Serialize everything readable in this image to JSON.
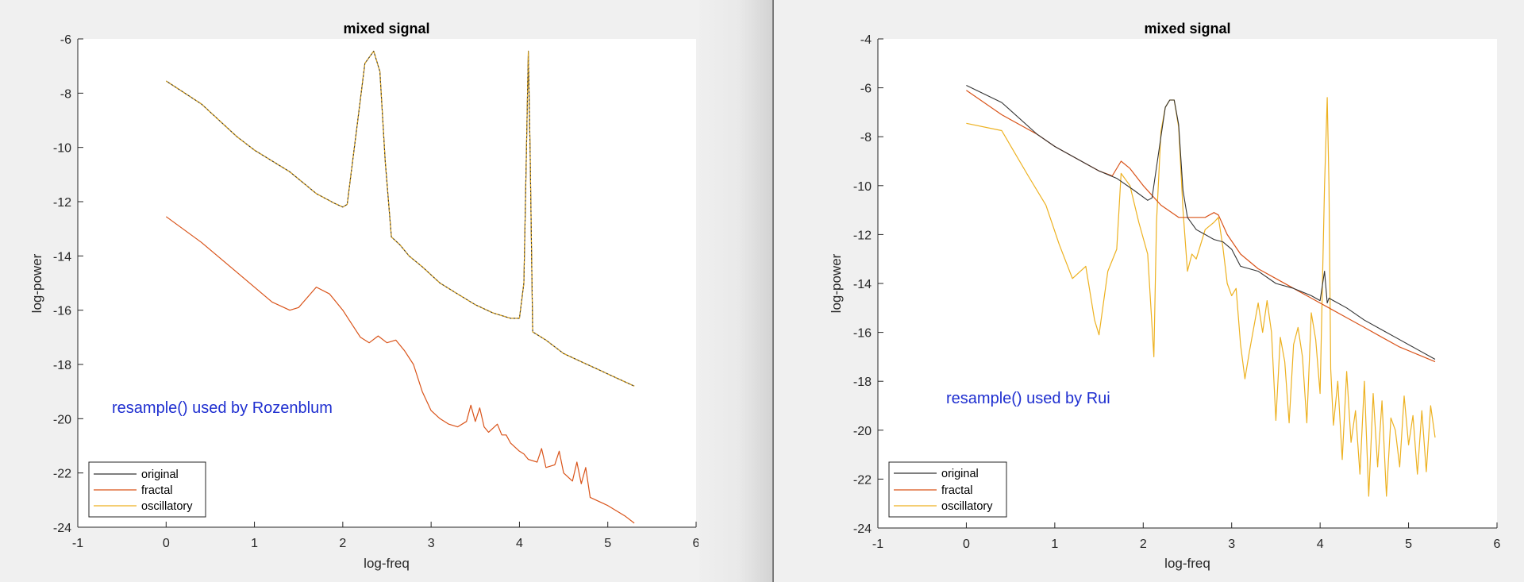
{
  "figure": {
    "background": "#f0f0f0",
    "colors": {
      "original": "#333333",
      "fractal": "#d95319",
      "oscillatory": "#edb120",
      "annotation": "#1f2fd0"
    }
  },
  "chart_data": [
    {
      "type": "line",
      "title": "mixed signal",
      "xlabel": "log-freq",
      "ylabel": "log-power",
      "xlim": [
        -1,
        6
      ],
      "ylim": [
        -24,
        -6
      ],
      "xticks": [
        "-1",
        "0",
        "1",
        "2",
        "3",
        "4",
        "5",
        "6"
      ],
      "yticks": [
        "-6",
        "-8",
        "-10",
        "-12",
        "-14",
        "-16",
        "-18",
        "-20",
        "-22",
        "-24"
      ],
      "grid": false,
      "legend": {
        "position": "southwest",
        "entries": [
          "original",
          "fractal",
          "oscillatory"
        ]
      },
      "annotation": {
        "text": "resample() used by Rozenblum",
        "x": -0.6,
        "y": -19.6
      },
      "series": [
        {
          "name": "original",
          "color": "#333333",
          "x": [
            0,
            0.4,
            0.8,
            1.0,
            1.4,
            1.7,
            1.9,
            2.0,
            2.05,
            2.15,
            2.25,
            2.35,
            2.42,
            2.48,
            2.55,
            2.65,
            2.75,
            2.9,
            3.1,
            3.3,
            3.5,
            3.7,
            3.9,
            4.0,
            4.05,
            4.08,
            4.1,
            4.12,
            4.15,
            4.3,
            4.5,
            4.7,
            4.9,
            5.1,
            5.3
          ],
          "y": [
            -7.55,
            -8.4,
            -9.6,
            -10.1,
            -10.9,
            -11.7,
            -12.05,
            -12.2,
            -12.1,
            -9.5,
            -6.9,
            -6.45,
            -7.2,
            -10.5,
            -13.3,
            -13.6,
            -14.0,
            -14.4,
            -15.0,
            -15.4,
            -15.8,
            -16.1,
            -16.3,
            -16.3,
            -15.0,
            -10.0,
            -6.45,
            -10.0,
            -16.8,
            -17.1,
            -17.6,
            -17.9,
            -18.2,
            -18.5,
            -18.8
          ]
        },
        {
          "name": "fractal",
          "color": "#d95319",
          "x": [
            0,
            0.4,
            0.8,
            1.2,
            1.4,
            1.5,
            1.7,
            1.85,
            2.0,
            2.1,
            2.2,
            2.3,
            2.4,
            2.5,
            2.6,
            2.7,
            2.8,
            2.9,
            3.0,
            3.1,
            3.2,
            3.3,
            3.4,
            3.45,
            3.5,
            3.55,
            3.6,
            3.65,
            3.75,
            3.8,
            3.85,
            3.9,
            4.0,
            4.05,
            4.1,
            4.2,
            4.25,
            4.3,
            4.4,
            4.45,
            4.5,
            4.6,
            4.65,
            4.7,
            4.75,
            4.8,
            5.0,
            5.2,
            5.3
          ],
          "y": [
            -12.55,
            -13.5,
            -14.6,
            -15.7,
            -16.0,
            -15.9,
            -15.15,
            -15.4,
            -16.0,
            -16.5,
            -17.0,
            -17.2,
            -16.95,
            -17.2,
            -17.1,
            -17.5,
            -18.0,
            -19.0,
            -19.7,
            -20.0,
            -20.2,
            -20.3,
            -20.1,
            -19.5,
            -20.1,
            -19.6,
            -20.3,
            -20.5,
            -20.2,
            -20.6,
            -20.6,
            -20.9,
            -21.2,
            -21.3,
            -21.5,
            -21.6,
            -21.1,
            -21.8,
            -21.7,
            -21.2,
            -22.0,
            -22.3,
            -21.6,
            -22.4,
            -21.8,
            -22.9,
            -23.2,
            -23.6,
            -23.85
          ]
        },
        {
          "name": "oscillatory",
          "color": "#edb120",
          "x": [
            0,
            0.4,
            0.8,
            1.0,
            1.4,
            1.7,
            1.9,
            2.0,
            2.05,
            2.15,
            2.25,
            2.35,
            2.42,
            2.48,
            2.55,
            2.65,
            2.75,
            2.9,
            3.1,
            3.3,
            3.5,
            3.7,
            3.9,
            4.0,
            4.05,
            4.08,
            4.1,
            4.12,
            4.15,
            4.3,
            4.5,
            4.7,
            4.9,
            5.1,
            5.3
          ],
          "y": [
            -7.55,
            -8.4,
            -9.6,
            -10.1,
            -10.9,
            -11.7,
            -12.05,
            -12.2,
            -12.1,
            -9.5,
            -6.9,
            -6.45,
            -7.2,
            -10.5,
            -13.3,
            -13.6,
            -14.0,
            -14.4,
            -15.0,
            -15.4,
            -15.8,
            -16.1,
            -16.3,
            -16.3,
            -15.0,
            -10.0,
            -6.45,
            -10.0,
            -16.8,
            -17.1,
            -17.6,
            -17.9,
            -18.2,
            -18.5,
            -18.8
          ]
        }
      ]
    },
    {
      "type": "line",
      "title": "mixed signal",
      "xlabel": "log-freq",
      "ylabel": "log-power",
      "xlim": [
        -1,
        6
      ],
      "ylim": [
        -24,
        -4
      ],
      "xticks": [
        "-1",
        "0",
        "1",
        "2",
        "3",
        "4",
        "5",
        "6"
      ],
      "yticks": [
        "-4",
        "-6",
        "-8",
        "-10",
        "-12",
        "-14",
        "-16",
        "-18",
        "-20",
        "-22",
        "-24"
      ],
      "grid": false,
      "legend": {
        "position": "southwest",
        "entries": [
          "original",
          "fractal",
          "oscillatory"
        ]
      },
      "annotation": {
        "text": "resample() used by Rui",
        "x": -0.22,
        "y": -18.9
      },
      "series": [
        {
          "name": "original",
          "color": "#333333",
          "x": [
            0,
            0.4,
            0.8,
            1.0,
            1.3,
            1.5,
            1.7,
            1.9,
            2.05,
            2.1,
            2.2,
            2.25,
            2.3,
            2.35,
            2.4,
            2.45,
            2.5,
            2.6,
            2.7,
            2.8,
            2.9,
            3.0,
            3.1,
            3.3,
            3.5,
            3.7,
            3.9,
            4.0,
            4.05,
            4.08,
            4.1,
            4.15,
            4.3,
            4.5,
            4.7,
            4.9,
            5.1,
            5.3
          ],
          "y": [
            -5.9,
            -6.6,
            -7.9,
            -8.4,
            -9.0,
            -9.4,
            -9.7,
            -10.2,
            -10.6,
            -10.5,
            -8.0,
            -6.8,
            -6.5,
            -6.5,
            -7.5,
            -10.2,
            -11.3,
            -11.8,
            -12.0,
            -12.2,
            -12.3,
            -12.6,
            -13.3,
            -13.5,
            -14.0,
            -14.2,
            -14.5,
            -14.7,
            -13.5,
            -14.8,
            -14.6,
            -14.7,
            -15.0,
            -15.5,
            -15.9,
            -16.3,
            -16.7,
            -17.1
          ]
        },
        {
          "name": "fractal",
          "color": "#d95319",
          "x": [
            0,
            0.4,
            0.8,
            1.0,
            1.3,
            1.5,
            1.65,
            1.75,
            1.85,
            2.0,
            2.2,
            2.4,
            2.6,
            2.7,
            2.8,
            2.85,
            2.95,
            3.1,
            3.3,
            3.5,
            3.7,
            3.9,
            4.1,
            4.3,
            4.5,
            4.7,
            4.9,
            5.1,
            5.3
          ],
          "y": [
            -6.1,
            -7.1,
            -7.9,
            -8.4,
            -9.0,
            -9.4,
            -9.6,
            -9.0,
            -9.3,
            -10.0,
            -10.8,
            -11.3,
            -11.3,
            -11.3,
            -11.1,
            -11.2,
            -12.0,
            -12.8,
            -13.4,
            -13.8,
            -14.2,
            -14.6,
            -15.0,
            -15.4,
            -15.8,
            -16.2,
            -16.6,
            -16.9,
            -17.2
          ]
        },
        {
          "name": "oscillatory",
          "color": "#edb120",
          "x": [
            0,
            0.4,
            0.7,
            0.9,
            1.05,
            1.2,
            1.35,
            1.45,
            1.5,
            1.6,
            1.7,
            1.75,
            1.85,
            1.95,
            2.05,
            2.12,
            2.15,
            2.2,
            2.25,
            2.3,
            2.35,
            2.4,
            2.45,
            2.5,
            2.55,
            2.6,
            2.7,
            2.8,
            2.85,
            2.9,
            2.95,
            3.0,
            3.05,
            3.1,
            3.15,
            3.2,
            3.3,
            3.35,
            3.4,
            3.45,
            3.5,
            3.55,
            3.6,
            3.65,
            3.7,
            3.75,
            3.8,
            3.85,
            3.9,
            3.95,
            4.0,
            4.05,
            4.08,
            4.1,
            4.12,
            4.15,
            4.2,
            4.25,
            4.3,
            4.35,
            4.4,
            4.45,
            4.5,
            4.55,
            4.6,
            4.65,
            4.7,
            4.75,
            4.8,
            4.85,
            4.9,
            4.95,
            5.0,
            5.05,
            5.1,
            5.15,
            5.2,
            5.25,
            5.3
          ],
          "y": [
            -7.45,
            -7.75,
            -9.6,
            -10.8,
            -12.4,
            -13.8,
            -13.3,
            -15.5,
            -16.1,
            -13.5,
            -12.6,
            -9.5,
            -10.0,
            -11.5,
            -12.8,
            -17.0,
            -11.5,
            -7.8,
            -6.8,
            -6.5,
            -6.5,
            -7.6,
            -11.0,
            -13.5,
            -12.8,
            -13.0,
            -11.8,
            -11.5,
            -11.3,
            -12.5,
            -14.0,
            -14.5,
            -14.2,
            -16.5,
            -17.9,
            -16.8,
            -14.8,
            -16.0,
            -14.7,
            -16.0,
            -19.6,
            -16.2,
            -17.2,
            -19.7,
            -16.5,
            -15.8,
            -17.0,
            -19.7,
            -15.2,
            -16.3,
            -18.5,
            -10.0,
            -6.4,
            -10.0,
            -17.5,
            -19.8,
            -18.0,
            -21.2,
            -17.6,
            -20.5,
            -19.2,
            -21.8,
            -18.0,
            -22.7,
            -18.5,
            -21.5,
            -18.8,
            -22.7,
            -19.5,
            -20.0,
            -21.5,
            -18.6,
            -20.6,
            -19.4,
            -21.8,
            -19.2,
            -21.7,
            -19.0,
            -20.3
          ]
        }
      ]
    }
  ]
}
